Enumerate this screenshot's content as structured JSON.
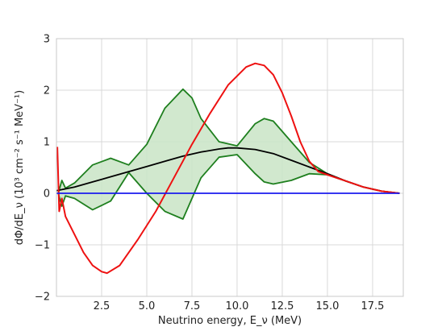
{
  "chart_data": {
    "type": "line",
    "title": "",
    "xlabel": "Neutrino energy, E_ν (MeV)",
    "ylabel": "dΦ/dE_ν (10³ cm⁻² s⁻¹ MeV⁻¹)",
    "xlim": [
      0,
      19.2
    ],
    "ylim": [
      -2,
      3
    ],
    "xticks": [
      2.5,
      5.0,
      7.5,
      10.0,
      12.5,
      15.0,
      17.5
    ],
    "xtick_labels": [
      "2.5",
      "5.0",
      "7.5",
      "10.0",
      "12.5",
      "15.0",
      "17.5"
    ],
    "yticks": [
      -2,
      -1,
      0,
      1,
      2,
      3
    ],
    "ytick_labels": [
      "−2",
      "−1",
      "0",
      "1",
      "2",
      "3"
    ],
    "grid": true,
    "legend": "none",
    "colors": {
      "red": "#ee1111",
      "black": "#000000",
      "blue": "#1a1aee",
      "green": "#1e7f1e",
      "band_fill": "#c9e4c5"
    },
    "series": [
      {
        "color": "#000000",
        "x": [
          0.0,
          1.0,
          2.0,
          3.0,
          4.0,
          5.0,
          6.0,
          7.0,
          8.0,
          9.0,
          9.5,
          10.0,
          11.0,
          12.0,
          13.0,
          14.0,
          15.0,
          16.0,
          17.0,
          18.0,
          19.0
        ],
        "y": [
          0.05,
          0.12,
          0.22,
          0.32,
          0.42,
          0.52,
          0.62,
          0.72,
          0.8,
          0.86,
          0.88,
          0.88,
          0.85,
          0.77,
          0.64,
          0.51,
          0.38,
          0.24,
          0.12,
          0.04,
          0.0
        ]
      },
      {
        "color": "#ee1111",
        "x": [
          0.05,
          0.15,
          0.3,
          0.5,
          1.0,
          1.5,
          2.0,
          2.5,
          2.8,
          3.5,
          4.5,
          5.5,
          6.5,
          7.5,
          8.5,
          9.5,
          10.5,
          11.0,
          11.5,
          12.0,
          12.5,
          13.0,
          13.5,
          14.0,
          14.5,
          15.0,
          16.0,
          17.0,
          18.0,
          19.0
        ],
        "y": [
          0.9,
          -0.35,
          -0.1,
          -0.45,
          -0.8,
          -1.15,
          -1.4,
          -1.52,
          -1.55,
          -1.4,
          -0.9,
          -0.35,
          0.3,
          0.95,
          1.55,
          2.1,
          2.45,
          2.52,
          2.48,
          2.3,
          1.95,
          1.5,
          1.0,
          0.62,
          0.42,
          0.36,
          0.24,
          0.12,
          0.04,
          0.0
        ]
      },
      {
        "color": "#1a1aee",
        "x": [
          0.0,
          19.0
        ],
        "y": [
          0.0,
          0.0
        ]
      }
    ],
    "band": {
      "color": "#1e7f1e",
      "x": [
        0.1,
        0.3,
        0.5,
        1.0,
        2.0,
        3.0,
        4.0,
        5.0,
        6.0,
        7.0,
        7.5,
        8.0,
        9.0,
        10.0,
        11.0,
        11.5,
        12.0,
        13.0,
        14.0,
        15.0,
        16.0,
        17.0,
        18.0,
        19.0
      ],
      "upper": [
        0.0,
        0.25,
        0.1,
        0.2,
        0.55,
        0.68,
        0.55,
        0.95,
        1.65,
        2.02,
        1.85,
        1.45,
        1.0,
        0.92,
        1.35,
        1.45,
        1.4,
        1.0,
        0.6,
        0.38,
        0.24,
        0.12,
        0.04,
        0.0
      ],
      "lower": [
        0.0,
        -0.25,
        -0.05,
        -0.1,
        -0.32,
        -0.15,
        0.4,
        0.0,
        -0.35,
        -0.5,
        -0.1,
        0.3,
        0.7,
        0.75,
        0.38,
        0.22,
        0.18,
        0.25,
        0.38,
        0.36,
        0.24,
        0.12,
        0.04,
        0.0
      ]
    }
  }
}
